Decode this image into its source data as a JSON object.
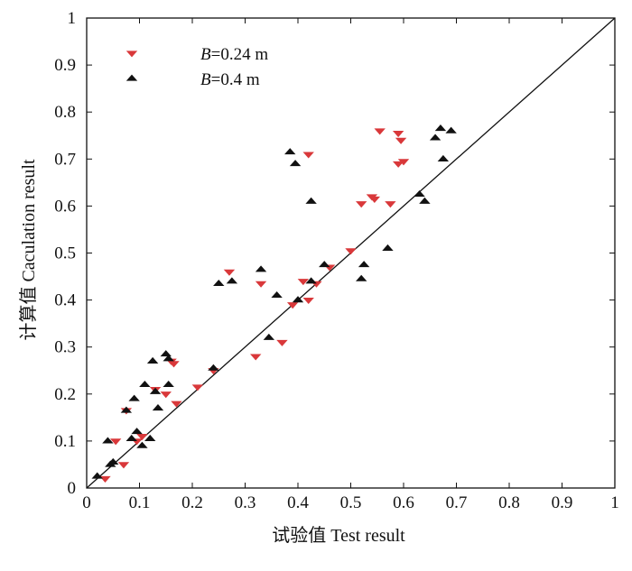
{
  "chart_data": {
    "type": "scatter",
    "xlabel": "试验值 Test result",
    "ylabel": "计算值 Caculation result",
    "xlim": [
      0,
      1
    ],
    "ylim": [
      0,
      1
    ],
    "xticks": [
      "0",
      "0.1",
      "0.2",
      "0.3",
      "0.4",
      "0.5",
      "0.6",
      "0.7",
      "0.8",
      "0.9",
      "1"
    ],
    "yticks": [
      "0",
      "0.1",
      "0.2",
      "0.3",
      "0.4",
      "0.5",
      "0.6",
      "0.7",
      "0.8",
      "0.9",
      "1"
    ],
    "reference_line": {
      "from": [
        0,
        0
      ],
      "to": [
        1,
        1
      ]
    },
    "legend_position": "top-left",
    "series": [
      {
        "name_prefix": "B",
        "name_suffix": "=0.24 m",
        "marker": "triangle-down",
        "color": "#d9383a",
        "points": [
          [
            0.035,
            0.02
          ],
          [
            0.055,
            0.1
          ],
          [
            0.07,
            0.05
          ],
          [
            0.075,
            0.165
          ],
          [
            0.095,
            0.1
          ],
          [
            0.105,
            0.11
          ],
          [
            0.13,
            0.21
          ],
          [
            0.15,
            0.2
          ],
          [
            0.16,
            0.27
          ],
          [
            0.165,
            0.265
          ],
          [
            0.17,
            0.18
          ],
          [
            0.21,
            0.215
          ],
          [
            0.24,
            0.25
          ],
          [
            0.27,
            0.46
          ],
          [
            0.32,
            0.28
          ],
          [
            0.33,
            0.435
          ],
          [
            0.37,
            0.31
          ],
          [
            0.39,
            0.39
          ],
          [
            0.41,
            0.44
          ],
          [
            0.42,
            0.71
          ],
          [
            0.42,
            0.4
          ],
          [
            0.435,
            0.435
          ],
          [
            0.46,
            0.47
          ],
          [
            0.5,
            0.505
          ],
          [
            0.52,
            0.605
          ],
          [
            0.54,
            0.62
          ],
          [
            0.545,
            0.615
          ],
          [
            0.555,
            0.76
          ],
          [
            0.575,
            0.605
          ],
          [
            0.59,
            0.755
          ],
          [
            0.59,
            0.69
          ],
          [
            0.595,
            0.74
          ],
          [
            0.6,
            0.695
          ]
        ]
      },
      {
        "name_prefix": "B",
        "name_suffix": "=0.4 m",
        "marker": "triangle-up",
        "color": "#111111",
        "points": [
          [
            0.02,
            0.025
          ],
          [
            0.04,
            0.1
          ],
          [
            0.045,
            0.05
          ],
          [
            0.05,
            0.055
          ],
          [
            0.075,
            0.165
          ],
          [
            0.085,
            0.105
          ],
          [
            0.09,
            0.19
          ],
          [
            0.095,
            0.12
          ],
          [
            0.105,
            0.09
          ],
          [
            0.11,
            0.22
          ],
          [
            0.12,
            0.105
          ],
          [
            0.125,
            0.27
          ],
          [
            0.13,
            0.205
          ],
          [
            0.135,
            0.17
          ],
          [
            0.15,
            0.285
          ],
          [
            0.155,
            0.22
          ],
          [
            0.155,
            0.275
          ],
          [
            0.24,
            0.255
          ],
          [
            0.25,
            0.435
          ],
          [
            0.275,
            0.44
          ],
          [
            0.33,
            0.465
          ],
          [
            0.345,
            0.32
          ],
          [
            0.36,
            0.41
          ],
          [
            0.385,
            0.715
          ],
          [
            0.395,
            0.69
          ],
          [
            0.4,
            0.4
          ],
          [
            0.425,
            0.61
          ],
          [
            0.425,
            0.44
          ],
          [
            0.45,
            0.475
          ],
          [
            0.52,
            0.445
          ],
          [
            0.525,
            0.475
          ],
          [
            0.57,
            0.51
          ],
          [
            0.63,
            0.625
          ],
          [
            0.64,
            0.61
          ],
          [
            0.66,
            0.745
          ],
          [
            0.67,
            0.765
          ],
          [
            0.675,
            0.7
          ],
          [
            0.69,
            0.76
          ]
        ]
      }
    ]
  }
}
